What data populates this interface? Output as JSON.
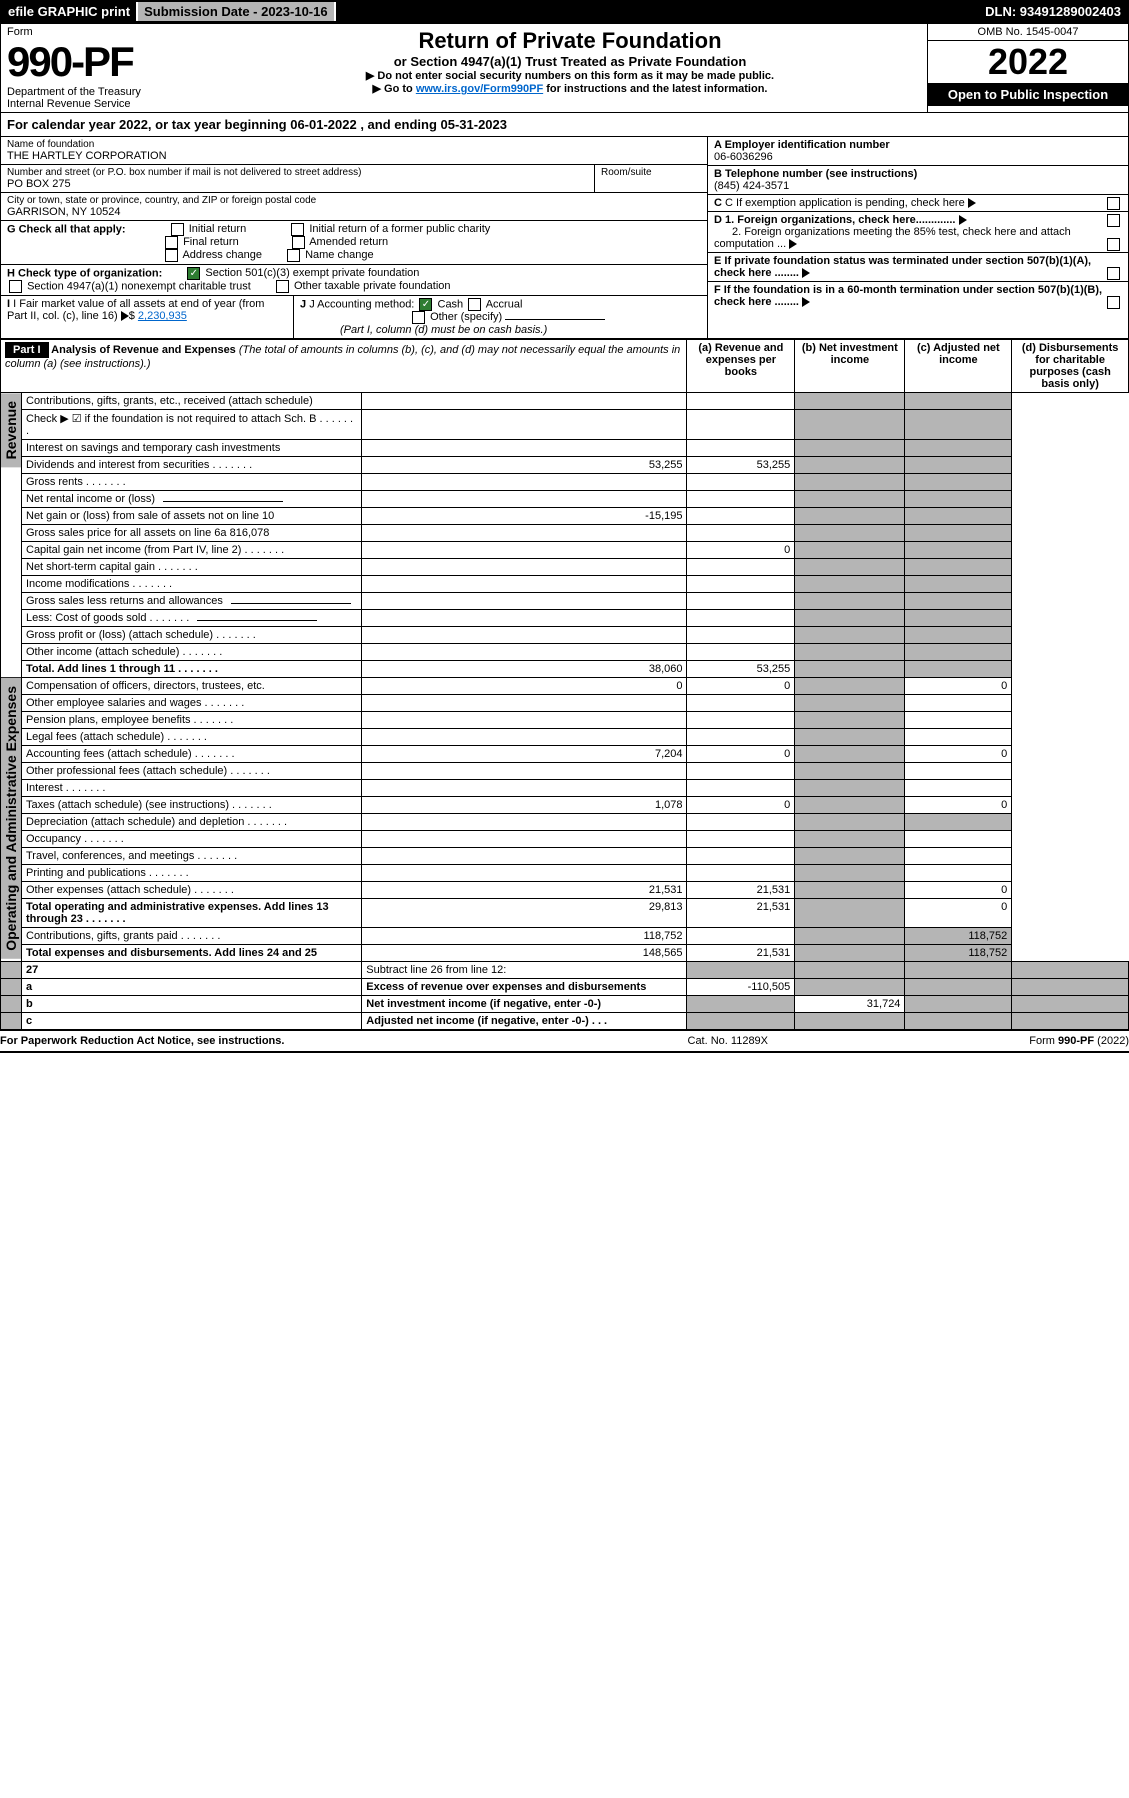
{
  "topbar": {
    "efile": "efile GRAPHIC print",
    "sub_label": "Submission Date - 2023-10-16",
    "dln": "DLN: 93491289002403"
  },
  "header": {
    "form_word": "Form",
    "form_num": "990-PF",
    "dept1": "Department of the Treasury",
    "dept2": "Internal Revenue Service",
    "title": "Return of Private Foundation",
    "subtitle": "or Section 4947(a)(1) Trust Treated as Private Foundation",
    "note1": "▶ Do not enter social security numbers on this form as it may be made public.",
    "note2_pre": "▶ Go to ",
    "note2_link": "www.irs.gov/Form990PF",
    "note2_post": " for instructions and the latest information.",
    "omb": "OMB No. 1545-0047",
    "year": "2022",
    "open": "Open to Public Inspection"
  },
  "calyear": "For calendar year 2022, or tax year beginning 06-01-2022                              , and ending 05-31-2023",
  "entity": {
    "name_label": "Name of foundation",
    "name": "THE HARTLEY CORPORATION",
    "addr_label": "Number and street (or P.O. box number if mail is not delivered to street address)",
    "addr": "PO BOX 275",
    "room_label": "Room/suite",
    "city_label": "City or town, state or province, country, and ZIP or foreign postal code",
    "city": "GARRISON, NY  10524",
    "ein_label": "A Employer identification number",
    "ein": "06-6036296",
    "tel_label": "B Telephone number (see instructions)",
    "tel": "(845) 424-3571",
    "c_label": "C If exemption application is pending, check here",
    "d1": "D 1. Foreign organizations, check here.............",
    "d2": "2. Foreign organizations meeting the 85% test, check here and attach computation ...",
    "e": "E  If private foundation status was terminated under section 507(b)(1)(A), check here ........",
    "f": "F  If the foundation is in a 60-month termination under section 507(b)(1)(B), check here ........"
  },
  "checks": {
    "g_label": "G Check all that apply:",
    "g1": "Initial return",
    "g2": "Final return",
    "g3": "Address change",
    "g4": "Initial return of a former public charity",
    "g5": "Amended return",
    "g6": "Name change",
    "h_label": "H Check type of organization:",
    "h1": "Section 501(c)(3) exempt private foundation",
    "h2": "Section 4947(a)(1) nonexempt charitable trust",
    "h3": "Other taxable private foundation",
    "i_label": "I Fair market value of all assets at end of year (from Part II, col. (c), line 16)",
    "i_val": "2,230,935",
    "j_label": "J Accounting method:",
    "j1": "Cash",
    "j2": "Accrual",
    "j3": "Other (specify)",
    "j_note": "(Part I, column (d) must be on cash basis.)"
  },
  "part1": {
    "label": "Part I",
    "title": "Analysis of Revenue and Expenses",
    "title_note": "(The total of amounts in columns (b), (c), and (d) may not necessarily equal the amounts in column (a) (see instructions).)",
    "col_a": "(a)   Revenue and expenses per books",
    "col_b": "(b)   Net investment income",
    "col_c": "(c)   Adjusted net income",
    "col_d": "(d)  Disbursements for charitable purposes (cash basis only)"
  },
  "sections": {
    "rev": "Revenue",
    "exp": "Operating and Administrative Expenses"
  },
  "rows": [
    {
      "n": "1",
      "d": "Contributions, gifts, grants, etc., received (attach schedule)"
    },
    {
      "n": "2",
      "d": "Check ▶ ☑ if the foundation is not required to attach Sch. B",
      "dots": true,
      "check": true
    },
    {
      "n": "3",
      "d": "Interest on savings and temporary cash investments"
    },
    {
      "n": "4",
      "d": "Dividends and interest from securities",
      "a": "53,255",
      "b": "53,255",
      "dots": true
    },
    {
      "n": "5a",
      "d": "Gross rents",
      "dots": true
    },
    {
      "n": "b",
      "d": "Net rental income or (loss)",
      "inline": true
    },
    {
      "n": "6a",
      "d": "Net gain or (loss) from sale of assets not on line 10",
      "a": "-15,195"
    },
    {
      "n": "b",
      "d": "Gross sales price for all assets on line 6a",
      "inline_val": "816,078"
    },
    {
      "n": "7",
      "d": "Capital gain net income (from Part IV, line 2)",
      "b": "0",
      "dots": true
    },
    {
      "n": "8",
      "d": "Net short-term capital gain",
      "dots": true
    },
    {
      "n": "9",
      "d": "Income modifications",
      "dots": true
    },
    {
      "n": "10a",
      "d": "Gross sales less returns and allowances",
      "inline": true
    },
    {
      "n": "b",
      "d": "Less: Cost of goods sold",
      "inline": true,
      "dots": true
    },
    {
      "n": "c",
      "d": "Gross profit or (loss) (attach schedule)",
      "dots": true
    },
    {
      "n": "11",
      "d": "Other income (attach schedule)",
      "dots": true
    },
    {
      "n": "12",
      "d": "Total. Add lines 1 through 11",
      "a": "38,060",
      "b": "53,255",
      "dots": true,
      "bold": true
    }
  ],
  "exp_rows": [
    {
      "n": "13",
      "d": "Compensation of officers, directors, trustees, etc.",
      "a": "0",
      "b": "0",
      "dd": "0"
    },
    {
      "n": "14",
      "d": "Other employee salaries and wages",
      "dots": true
    },
    {
      "n": "15",
      "d": "Pension plans, employee benefits",
      "dots": true
    },
    {
      "n": "16a",
      "d": "Legal fees (attach schedule)",
      "dots": true
    },
    {
      "n": "b",
      "d": "Accounting fees (attach schedule)",
      "a": "7,204",
      "b": "0",
      "dd": "0",
      "dots": true
    },
    {
      "n": "c",
      "d": "Other professional fees (attach schedule)",
      "dots": true
    },
    {
      "n": "17",
      "d": "Interest",
      "dots": true
    },
    {
      "n": "18",
      "d": "Taxes (attach schedule) (see instructions)",
      "a": "1,078",
      "b": "0",
      "dd": "0",
      "dots": true
    },
    {
      "n": "19",
      "d": "Depreciation (attach schedule) and depletion",
      "dots": true
    },
    {
      "n": "20",
      "d": "Occupancy",
      "dots": true
    },
    {
      "n": "21",
      "d": "Travel, conferences, and meetings",
      "dots": true
    },
    {
      "n": "22",
      "d": "Printing and publications",
      "dots": true
    },
    {
      "n": "23",
      "d": "Other expenses (attach schedule)",
      "a": "21,531",
      "b": "21,531",
      "dd": "0",
      "dots": true
    },
    {
      "n": "24",
      "d": "Total operating and administrative expenses. Add lines 13 through 23",
      "a": "29,813",
      "b": "21,531",
      "dd": "0",
      "dots": true,
      "bold": true
    },
    {
      "n": "25",
      "d": "Contributions, gifts, grants paid",
      "a": "118,752",
      "dd": "118,752",
      "dots": true
    },
    {
      "n": "26",
      "d": "Total expenses and disbursements. Add lines 24 and 25",
      "a": "148,565",
      "b": "21,531",
      "dd": "118,752",
      "bold": true
    }
  ],
  "bottom_rows": [
    {
      "n": "27",
      "d": "Subtract line 26 from line 12:"
    },
    {
      "n": "a",
      "d": "Excess of revenue over expenses and disbursements",
      "a": "-110,505",
      "bold": true
    },
    {
      "n": "b",
      "d": "Net investment income (if negative, enter -0-)",
      "b": "31,724",
      "bold": true
    },
    {
      "n": "c",
      "d": "Adjusted net income (if negative, enter -0-)",
      "bold": true,
      "dots": true
    }
  ],
  "footer": {
    "pra": "For Paperwork Reduction Act Notice, see instructions.",
    "cat": "Cat. No. 11289X",
    "form": "Form 990-PF (2022)"
  }
}
